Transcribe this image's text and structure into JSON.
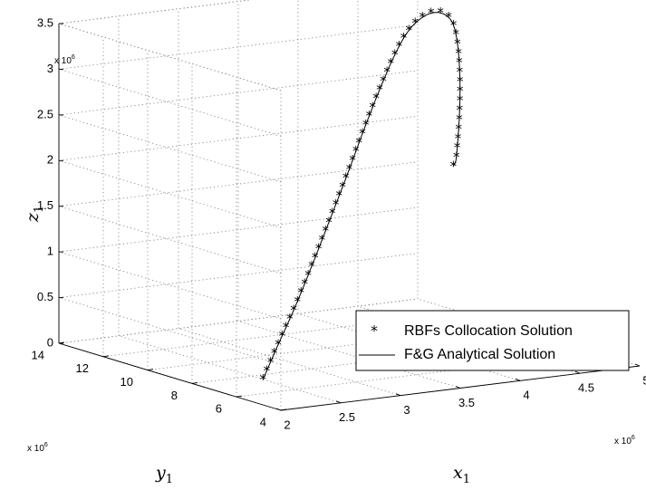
{
  "chart_data": {
    "type": "line3d",
    "xlabel": "x",
    "xlabel_sub": "1",
    "ylabel": "y",
    "ylabel_sub": "1",
    "zlabel": "z",
    "zlabel_sub": "1",
    "x_exponent": "x 10",
    "x_exponent_power": "6",
    "y_exponent": "x 10",
    "y_exponent_power": "6",
    "z_exponent": "x 10",
    "z_exponent_power": "6",
    "xlim": [
      2,
      5
    ],
    "ylim": [
      4,
      14
    ],
    "zlim": [
      0,
      3.5
    ],
    "x_ticks": [
      "2",
      "2.5",
      "3",
      "3.5",
      "4",
      "4.5",
      "5"
    ],
    "y_ticks": [
      "4",
      "6",
      "8",
      "10",
      "12",
      "14"
    ],
    "z_ticks": [
      "0",
      "0.5",
      "1",
      "1.5",
      "2",
      "2.5",
      "3",
      "3.5"
    ],
    "grid": true,
    "legend_position": "bottom-right",
    "series": [
      {
        "name": "RBFs Collocation Solution",
        "marker": "asterisk",
        "color": "#000000"
      },
      {
        "name": "F&G Analytical Solution",
        "marker": "line",
        "color": "#000000"
      }
    ],
    "trajectory_points": [
      [
        2.5,
        7.5,
        0.0
      ],
      [
        2.75,
        8.15,
        0.3
      ],
      [
        3.0,
        8.75,
        0.62
      ],
      [
        3.25,
        9.35,
        0.98
      ],
      [
        3.5,
        9.95,
        1.36
      ],
      [
        3.75,
        10.5,
        1.78
      ],
      [
        4.0,
        11.05,
        2.22
      ],
      [
        4.2,
        11.45,
        2.58
      ],
      [
        4.4,
        11.8,
        2.93
      ],
      [
        4.55,
        12.0,
        3.15
      ],
      [
        4.68,
        12.05,
        3.28
      ],
      [
        4.78,
        11.98,
        3.32
      ],
      [
        4.84,
        11.8,
        3.28
      ],
      [
        4.85,
        11.55,
        3.18
      ],
      [
        4.82,
        11.2,
        2.95
      ],
      [
        4.76,
        10.8,
        2.62
      ],
      [
        4.68,
        10.4,
        2.3
      ],
      [
        4.6,
        10.05,
        2.05
      ],
      [
        4.54,
        9.8,
        1.9
      ],
      [
        4.5,
        9.7,
        1.85
      ]
    ]
  }
}
